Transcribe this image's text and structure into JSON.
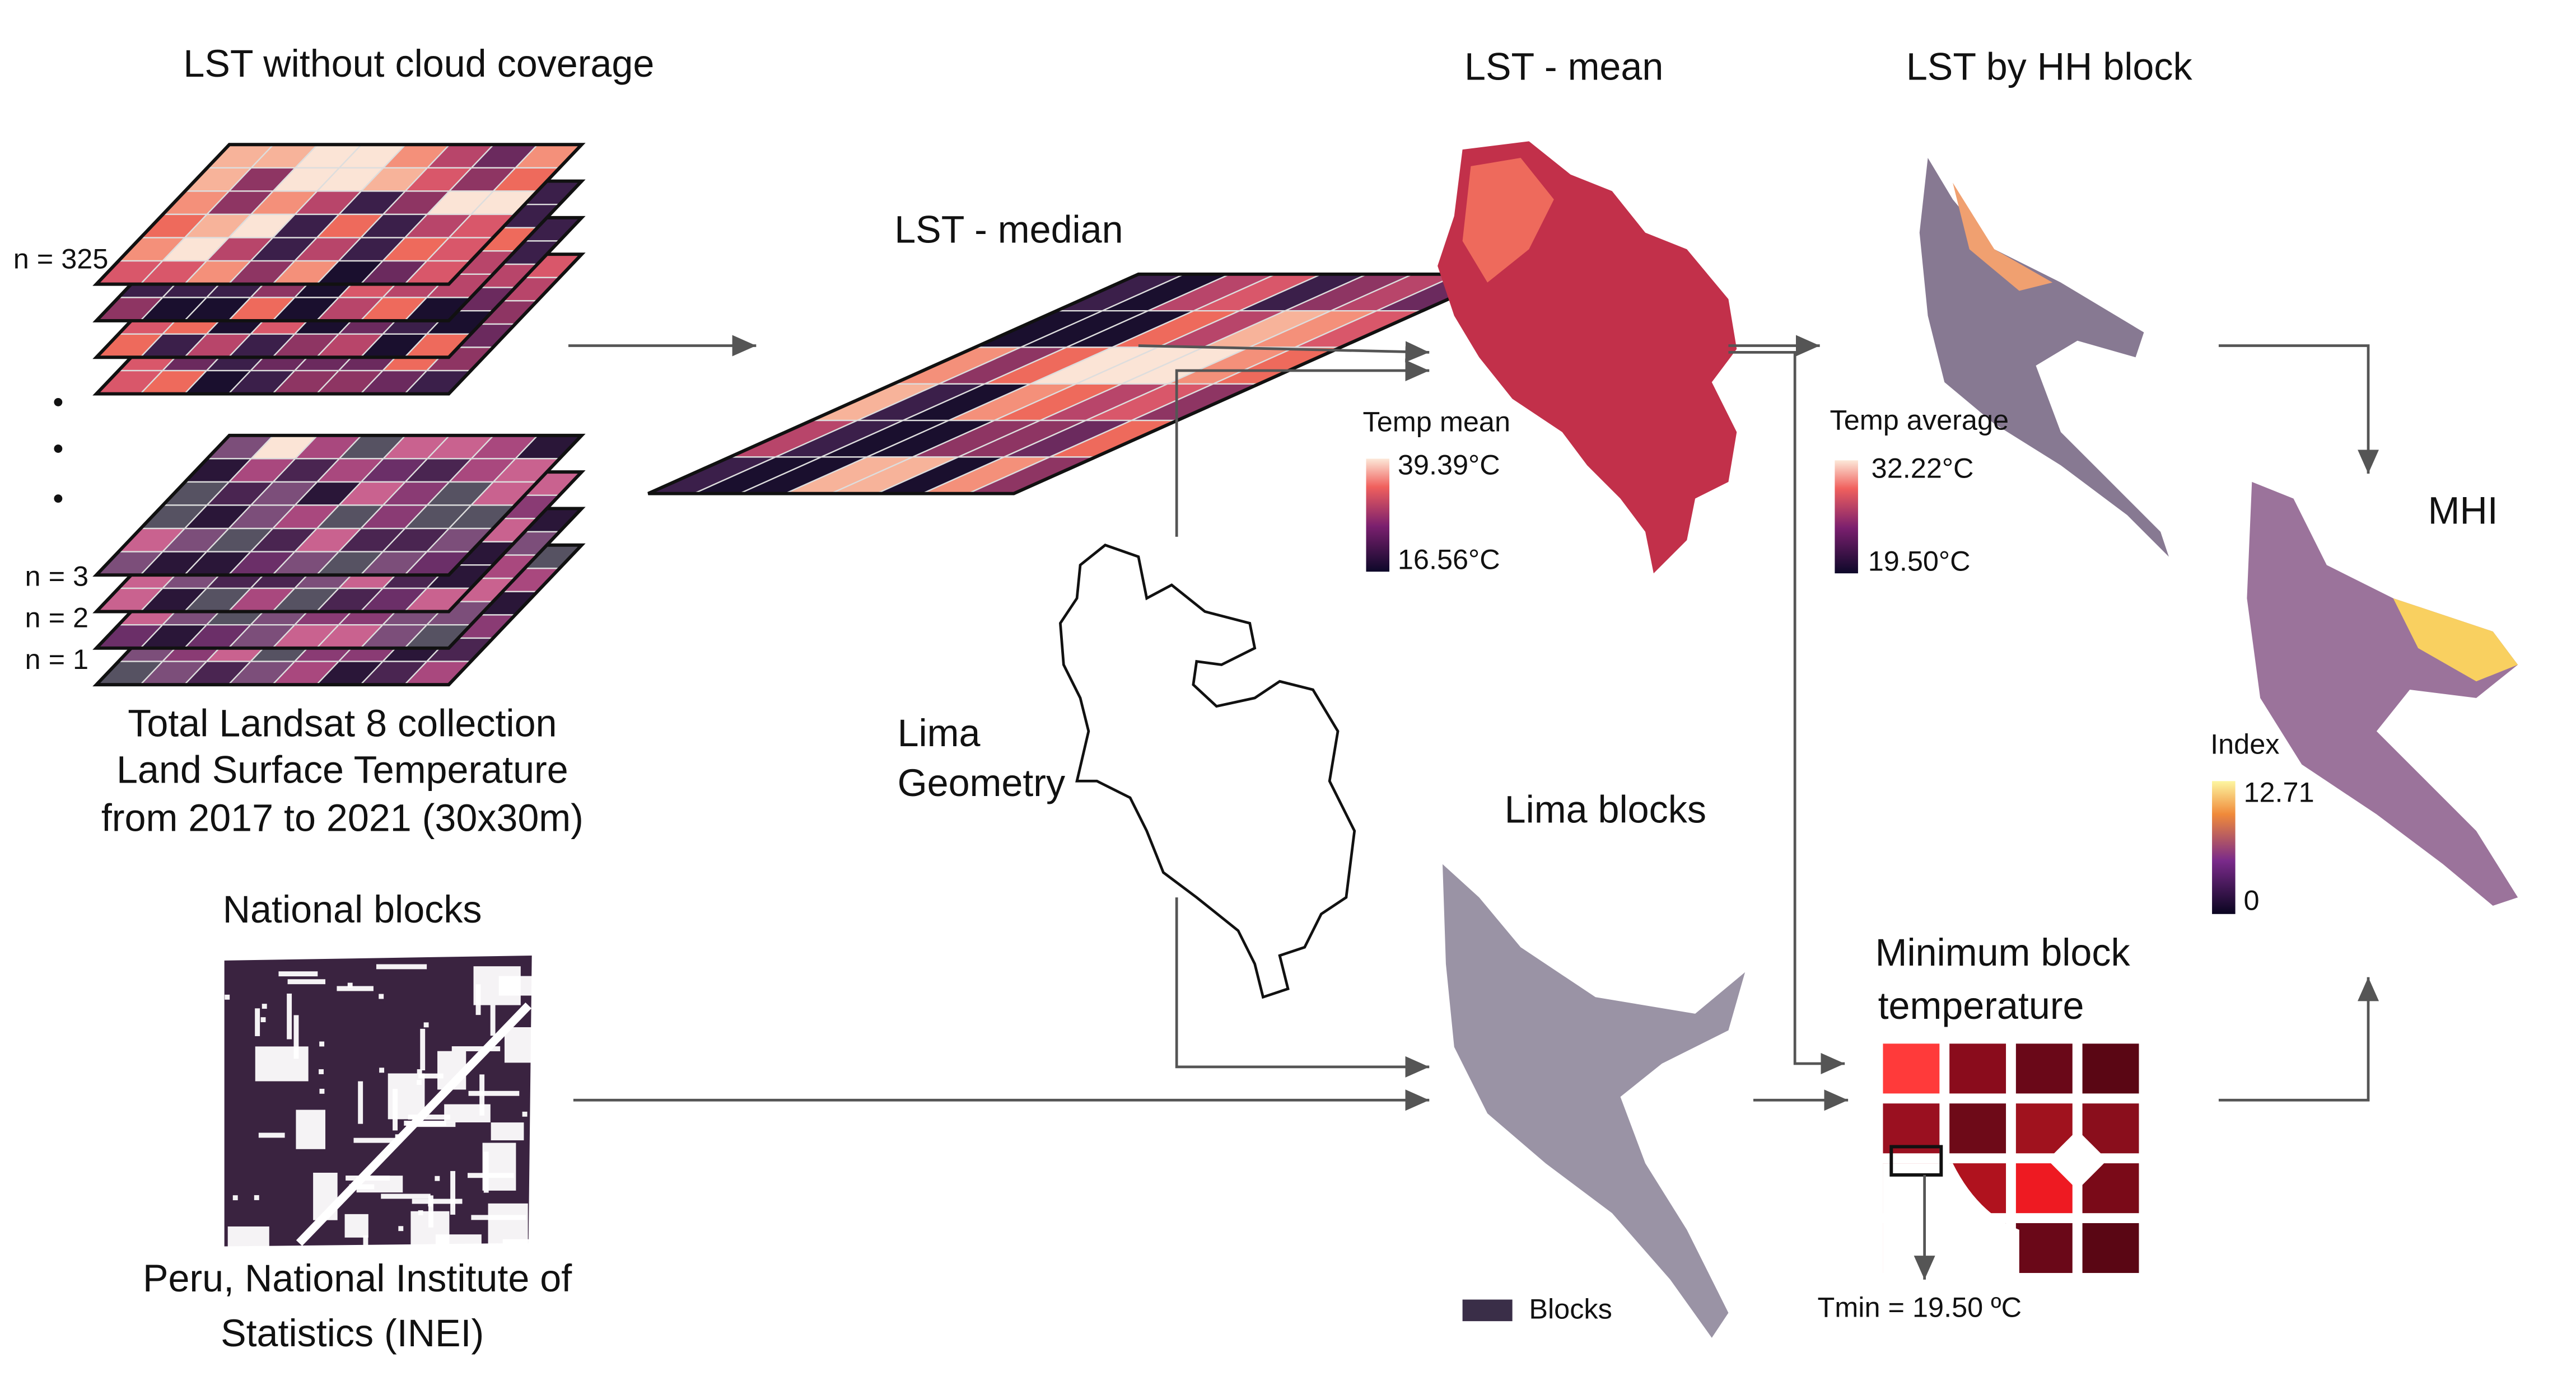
{
  "lst_stack": {
    "title": "LST without cloud coverage",
    "layer_labels": [
      "n = 325",
      "n = 3",
      "n = 2",
      "n = 1"
    ],
    "caption": [
      "Total Landsat 8 collection",
      "Land Surface Temperature",
      "from 2017 to 2021 (30x30m)"
    ]
  },
  "lst_median": {
    "title": "LST - median"
  },
  "lst_mean": {
    "title": "LST - mean",
    "legend_title": "Temp mean",
    "legend_max": "39.39°C",
    "legend_min": "16.56°C"
  },
  "lst_block": {
    "title": "LST by HH block",
    "legend_title": "Temp average",
    "legend_max": "32.22°C",
    "legend_min": "19.50°C"
  },
  "mhi": {
    "title": "MHI",
    "legend_title": "Index",
    "legend_max": "12.71",
    "legend_min": "0"
  },
  "lima_geometry": {
    "label": [
      "Lima",
      "Geometry"
    ]
  },
  "lima_blocks": {
    "title": "Lima blocks",
    "legend": "Blocks"
  },
  "min_block": {
    "title": [
      "Minimum block",
      "temperature"
    ],
    "note": "Tmin = 19.50 ºC"
  },
  "national_blocks": {
    "title": "National blocks",
    "caption": [
      "Peru, National Institute of",
      "Statistics (INEI)"
    ]
  }
}
